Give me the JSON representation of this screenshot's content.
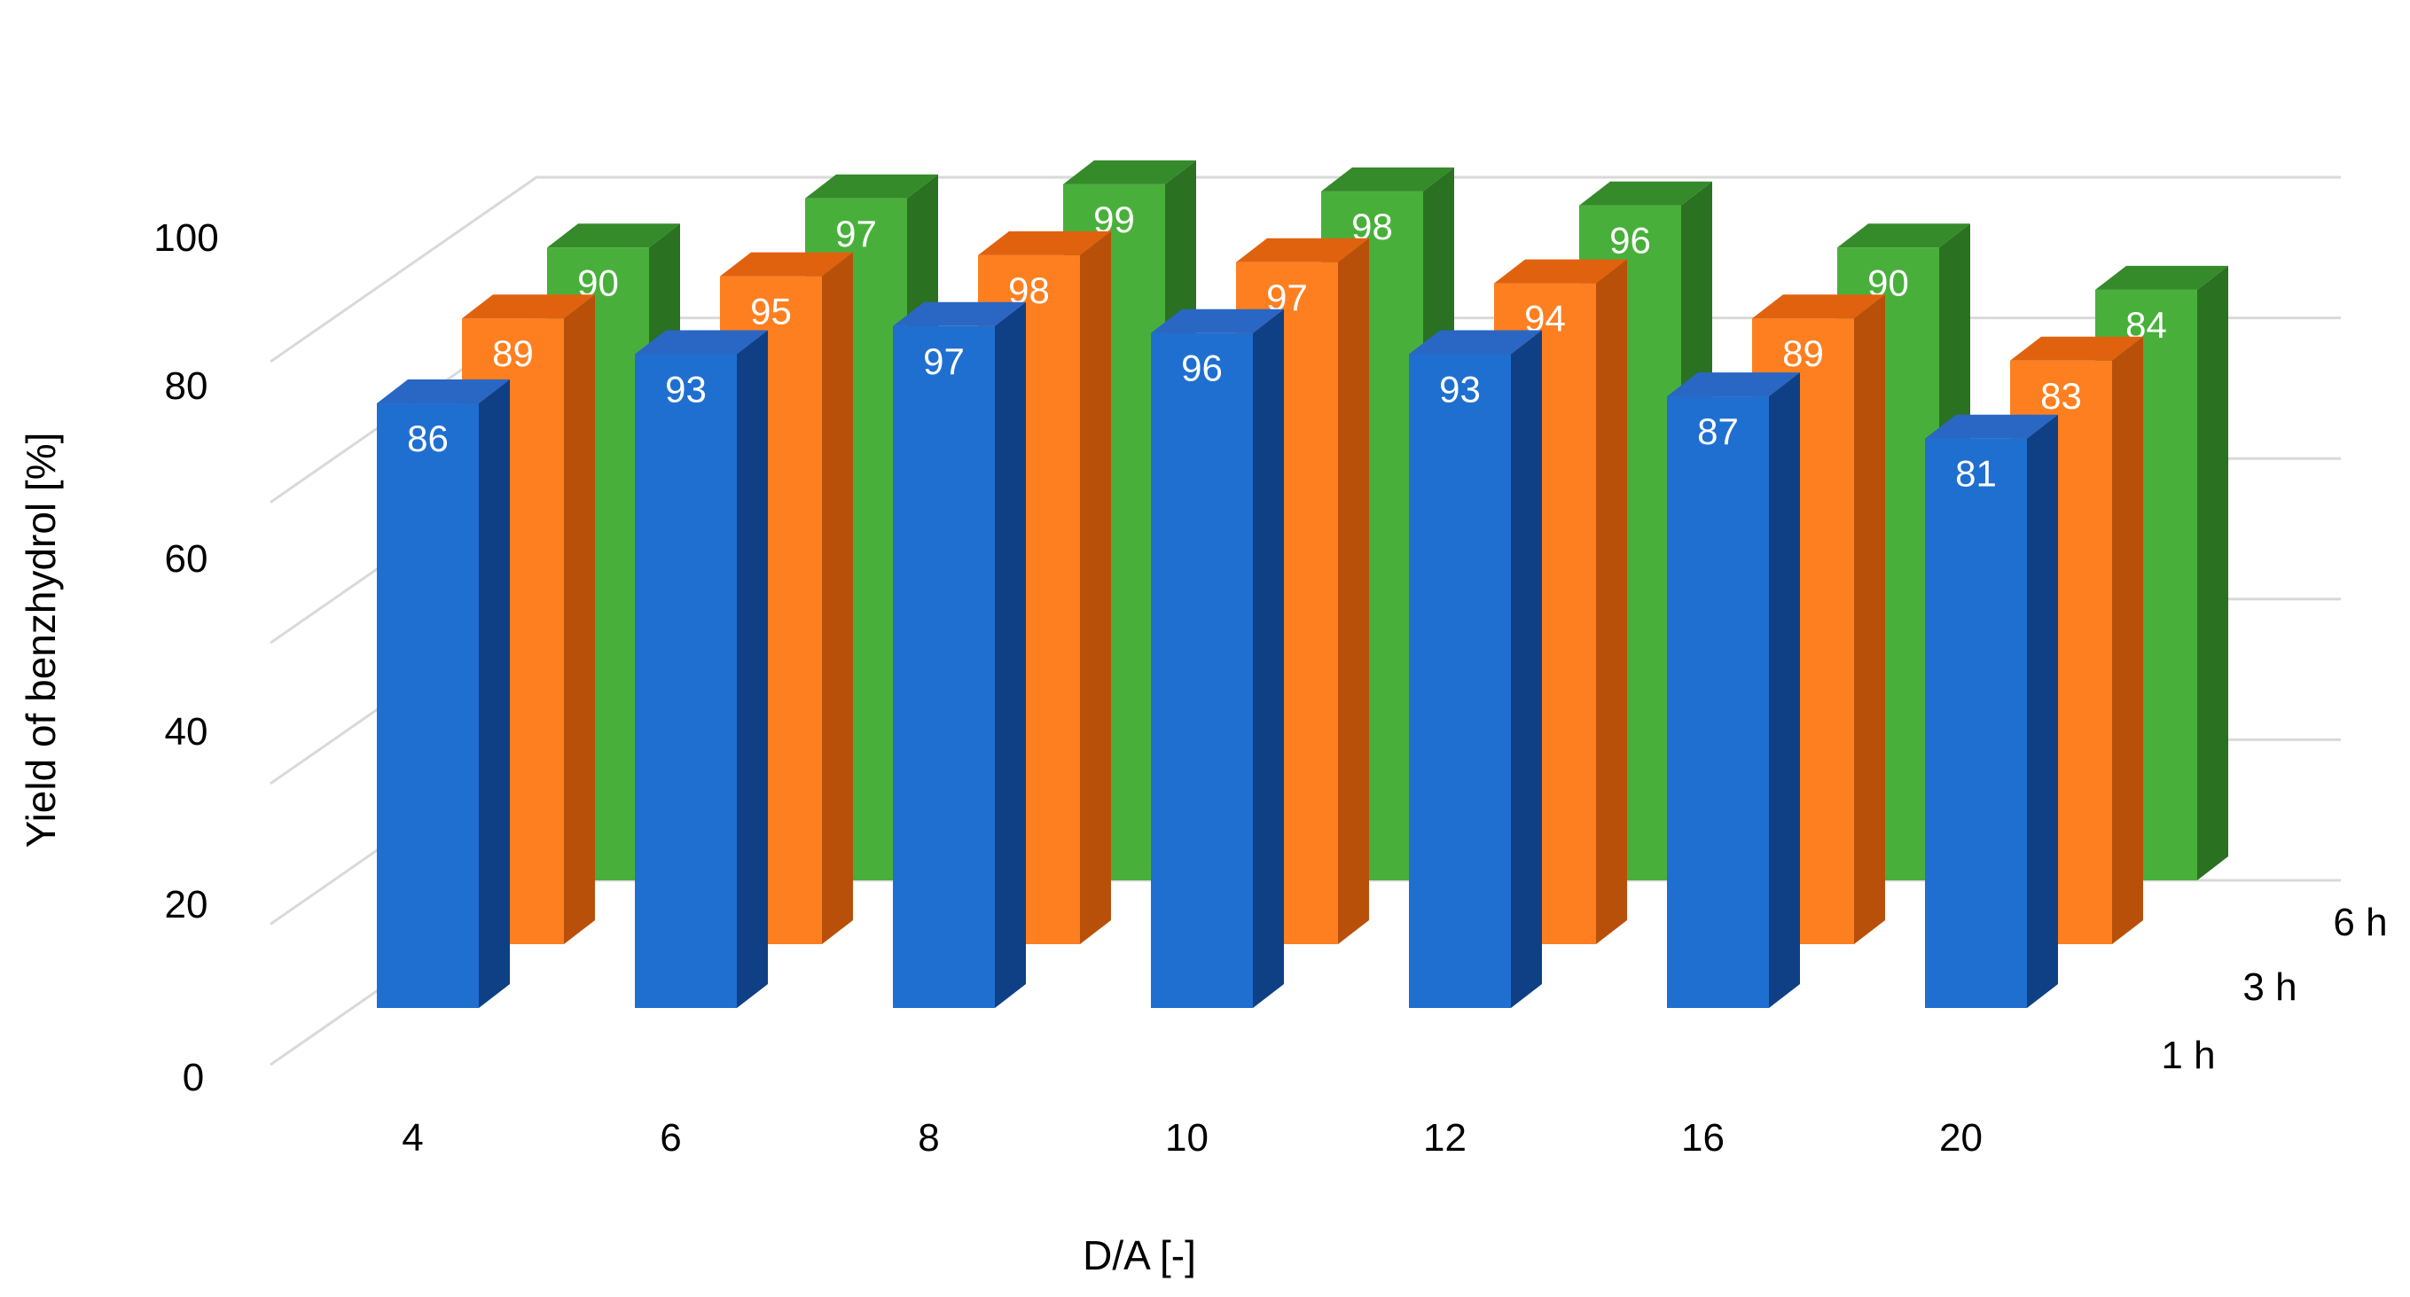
{
  "chart_data": {
    "type": "bar",
    "variant": "3d-clustered-depth",
    "title": "",
    "xlabel": "D/A [-]",
    "ylabel": "Yield of benzhydrol [%]",
    "ylim": [
      0,
      100
    ],
    "yticks": [
      "0",
      "20",
      "40",
      "60",
      "80",
      "100"
    ],
    "grid": true,
    "categories": [
      "4",
      "6",
      "8",
      "10",
      "12",
      "16",
      "20"
    ],
    "series": [
      {
        "name": "1 h",
        "color": "#1f6fd1",
        "side_color": "#0f3f85",
        "top_color": "#2a66c4",
        "label_color": "#ffffff",
        "values": [
          86,
          93,
          97,
          96,
          93,
          87,
          81
        ]
      },
      {
        "name": "3 h",
        "color": "#fd7f20",
        "side_color": "#b9500a",
        "top_color": "#e0620f",
        "label_color": "#ffffff",
        "values": [
          89,
          95,
          98,
          97,
          94,
          89,
          83
        ]
      },
      {
        "name": "6 h",
        "color": "#48b03a",
        "side_color": "#2a7122",
        "top_color": "#358a2a",
        "label_color": "#e8f3e3",
        "values": [
          90,
          97,
          99,
          98,
          96,
          90,
          84
        ]
      }
    ],
    "grid_color": "#d9d9d9"
  }
}
